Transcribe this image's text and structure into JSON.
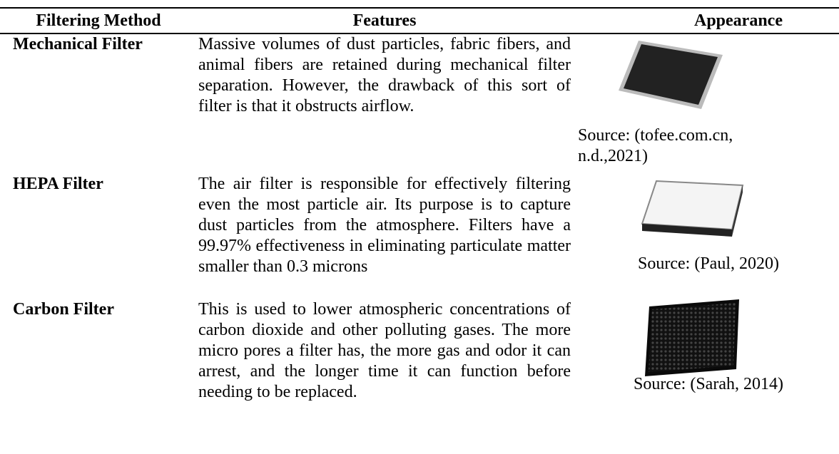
{
  "table": {
    "header": [
      "Filtering Method",
      "Features",
      "Appearance"
    ],
    "rows": [
      [
        "Mechanical Filter",
        "Massive volumes of dust particles, fabric fibers, and animal fibers are retained during mechanical filter separation. However, the drawback of this sort of filter is that it obstructs airflow.",
        "Source: (tofee.com.cn, n.d.,2021)"
      ],
      [
        "HEPA Filter",
        "The air filter is responsible for effectively filtering even the most particle air. Its purpose is to capture dust particles from the atmosphere. Filters have a 99.97% effectiveness in eliminating particulate matter smaller than 0.3 microns",
        "Source: (Paul, 2020)"
      ],
      [
        "Carbon Filter",
        "This is used to lower atmospheric concentrations of carbon dioxide and other polluting gases. The more micro pores a filter has, the more gas and odor it can arrest, and the longer time it can function before needing to be replaced.",
        "Source: (Sarah, 2014)"
      ]
    ]
  }
}
